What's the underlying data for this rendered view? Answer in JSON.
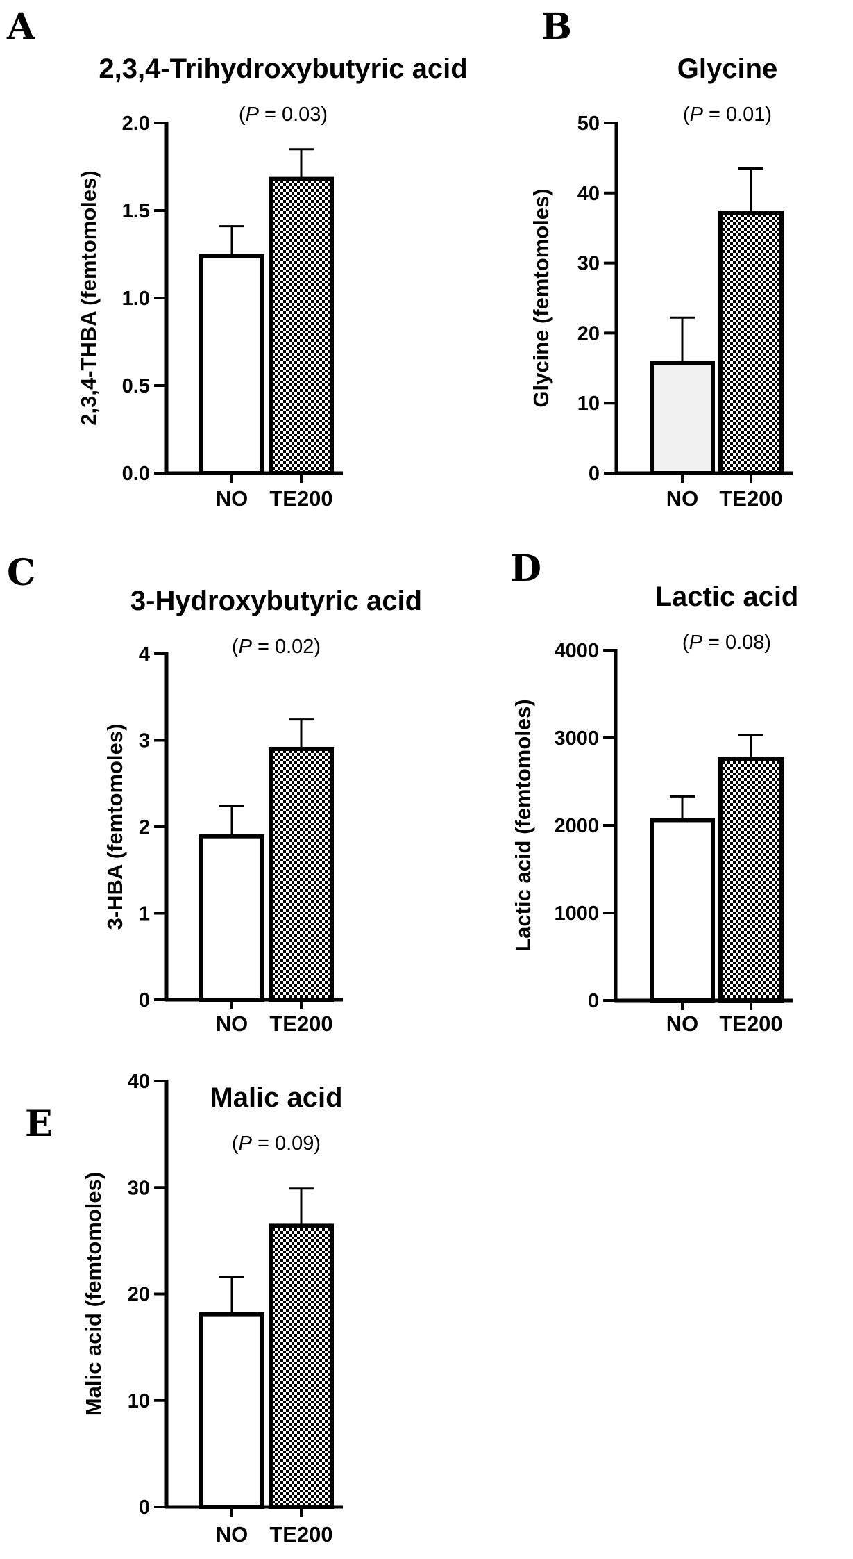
{
  "chart_data": [
    {
      "panel": "A",
      "type": "bar",
      "title": "2,3,4-Trihydroxybutyric acid",
      "subtitle": {
        "open": "(",
        "p": "P",
        "rest": " = 0.03)"
      },
      "ylabel": "2,3,4-THBA (femtomoles)",
      "xlabel": "",
      "categories": [
        "NO",
        "TE200"
      ],
      "values": [
        1.24,
        1.68
      ],
      "errors": [
        0.17,
        0.17
      ],
      "fills": [
        "white",
        "checker"
      ],
      "ylim": [
        0,
        2.0
      ],
      "yticks": [
        0.0,
        0.5,
        1.0,
        1.5,
        2.0
      ],
      "ytick_labels": [
        "0.0",
        "0.5",
        "1.0",
        "1.5",
        "2.0"
      ],
      "grid": false
    },
    {
      "panel": "B",
      "type": "bar",
      "title": "Glycine",
      "subtitle": {
        "open": "(",
        "p": "P",
        "rest": " = 0.01)"
      },
      "ylabel": "Glycine (femtomoles)",
      "xlabel": "",
      "categories": [
        "NO",
        "TE200"
      ],
      "values": [
        15.7,
        37.2
      ],
      "errors": [
        6.5,
        6.3
      ],
      "fills": [
        "lightgray",
        "checker"
      ],
      "ylim": [
        0,
        50
      ],
      "yticks": [
        0,
        10,
        20,
        30,
        40,
        50
      ],
      "ytick_labels": [
        "0",
        "10",
        "20",
        "30",
        "40",
        "50"
      ],
      "grid": false
    },
    {
      "panel": "C",
      "type": "bar",
      "title": "3-Hydroxybutyric acid",
      "subtitle": {
        "open": "(",
        "p": "P",
        "rest": " = 0.02)"
      },
      "ylabel": "3-HBA (femtomoles)",
      "xlabel": "",
      "categories": [
        "NO",
        "TE200"
      ],
      "values": [
        1.89,
        2.9
      ],
      "errors": [
        0.35,
        0.34
      ],
      "fills": [
        "white",
        "checker"
      ],
      "ylim": [
        0,
        4
      ],
      "yticks": [
        0,
        1,
        2,
        3,
        4
      ],
      "ytick_labels": [
        "0",
        "1",
        "2",
        "3",
        "4"
      ],
      "grid": false
    },
    {
      "panel": "D",
      "type": "bar",
      "title": "Lactic acid",
      "subtitle": {
        "open": "(",
        "p": "P",
        "rest": " = 0.08)"
      },
      "ylabel": "Lactic acid (femtomoles)",
      "xlabel": "",
      "categories": [
        "NO",
        "TE200"
      ],
      "values": [
        2060,
        2760
      ],
      "errors": [
        270,
        270
      ],
      "fills": [
        "white",
        "checker"
      ],
      "ylim": [
        0,
        4000
      ],
      "yticks": [
        0,
        1000,
        2000,
        3000,
        4000
      ],
      "ytick_labels": [
        "0",
        "1000",
        "2000",
        "3000",
        "4000"
      ],
      "grid": false
    },
    {
      "panel": "E",
      "type": "bar",
      "title": "Malic acid",
      "subtitle": {
        "open": "(",
        "p": "P",
        "rest": " = 0.09)"
      },
      "ylabel": "Malic acid (femtomoles)",
      "xlabel": "",
      "categories": [
        "NO",
        "TE200"
      ],
      "values": [
        18.1,
        26.4
      ],
      "errors": [
        3.5,
        3.5
      ],
      "fills": [
        "white",
        "checker"
      ],
      "ylim": [
        0,
        40
      ],
      "yticks": [
        0,
        10,
        20,
        30,
        40
      ],
      "ytick_labels": [
        "0",
        "10",
        "20",
        "30",
        "40"
      ],
      "grid": false
    }
  ],
  "colors": {
    "axis": "#000000",
    "bar_edge": "#000000",
    "white": "#ffffff",
    "lightgray": "#f0f0f0",
    "checker_dark": "#000000",
    "checker_light": "#ffffff"
  }
}
